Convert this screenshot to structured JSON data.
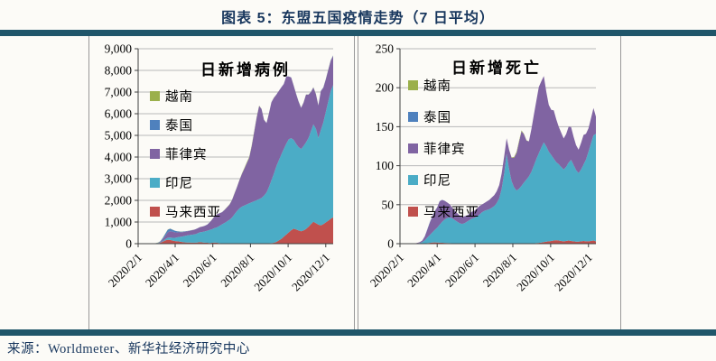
{
  "page_title": "图表 5：东盟五国疫情走势（7 日平均）",
  "footer": {
    "source": "来源：Worldmeter、新华社经济研究中心"
  },
  "colors": {
    "accent_bar": "#20566a",
    "heading_text": "#17365d",
    "divider": "#999999",
    "axis": "#404040",
    "grid": "#b8b8b8",
    "series": {
      "vietnam": "#9bb04c",
      "thailand": "#4f81bd",
      "philippines": "#8064a2",
      "indonesia": "#4bacc6",
      "malaysia": "#c0504d"
    }
  },
  "chart_data": [
    {
      "type": "area",
      "stacked": true,
      "title": "日新增病例",
      "ylim": [
        0,
        9000
      ],
      "y_tick_step": 1000,
      "y_format": "comma",
      "grid": "horizontal",
      "legend_position": "inside-left",
      "x_domain_days": [
        0,
        316
      ],
      "x_step_days": 4,
      "x_start_date": "2020/2/1",
      "x_tick_days": [
        0,
        60,
        121,
        182,
        243,
        304
      ],
      "x_tick_labels": [
        "2020/2/1",
        "2020/4/1",
        "2020/6/1",
        "2020/8/1",
        "2020/10/1",
        "2020/12/1"
      ],
      "legend": [
        {
          "key": "vietnam",
          "label": "越南"
        },
        {
          "key": "thailand",
          "label": "泰国"
        },
        {
          "key": "philippines",
          "label": "菲律宾"
        },
        {
          "key": "indonesia",
          "label": "印尼"
        },
        {
          "key": "malaysia",
          "label": "马来西亚"
        }
      ],
      "series": [
        {
          "key": "malaysia",
          "name": "马来西亚",
          "values": [
            0,
            0,
            0,
            1,
            1,
            2,
            3,
            6,
            15,
            40,
            90,
            150,
            185,
            170,
            140,
            120,
            110,
            95,
            75,
            60,
            55,
            50,
            45,
            45,
            55,
            75,
            60,
            45,
            40,
            35,
            40,
            55,
            40,
            25,
            15,
            10,
            8,
            6,
            5,
            4,
            4,
            5,
            8,
            10,
            12,
            14,
            12,
            10,
            9,
            10,
            12,
            15,
            18,
            20,
            25,
            40,
            80,
            150,
            220,
            320,
            420,
            520,
            620,
            690,
            660,
            610,
            570,
            610,
            680,
            780,
            900,
            1010,
            950,
            880,
            840,
            900,
            980,
            1060,
            1150,
            1220
          ]
        },
        {
          "key": "indonesia",
          "name": "印尼",
          "values": [
            0,
            0,
            0,
            0,
            0,
            1,
            2,
            4,
            8,
            15,
            30,
            60,
            90,
            110,
            130,
            150,
            185,
            220,
            260,
            300,
            330,
            350,
            370,
            390,
            420,
            450,
            480,
            520,
            560,
            600,
            630,
            670,
            720,
            800,
            880,
            950,
            1020,
            1100,
            1200,
            1350,
            1500,
            1620,
            1700,
            1750,
            1800,
            1850,
            1900,
            1950,
            2000,
            2050,
            2100,
            2200,
            2350,
            2600,
            2900,
            3200,
            3500,
            3700,
            3900,
            4050,
            4200,
            4300,
            4250,
            4100,
            3950,
            3850,
            3800,
            3900,
            4000,
            4100,
            4300,
            4500,
            4350,
            4000,
            4400,
            4700,
            5100,
            5500,
            5900,
            6100
          ]
        },
        {
          "key": "philippines",
          "name": "菲律宾",
          "values": [
            0,
            0,
            0,
            1,
            1,
            2,
            3,
            5,
            10,
            30,
            80,
            150,
            250,
            300,
            280,
            250,
            220,
            210,
            200,
            195,
            190,
            200,
            210,
            220,
            230,
            240,
            250,
            260,
            280,
            350,
            450,
            550,
            600,
            580,
            560,
            600,
            650,
            700,
            800,
            950,
            1100,
            1300,
            1500,
            1700,
            1900,
            2100,
            2600,
            3200,
            3800,
            4300,
            4100,
            3500,
            3200,
            3400,
            3600,
            3500,
            3300,
            3200,
            3100,
            3000,
            3100,
            2900,
            2800,
            2500,
            2300,
            2100,
            1900,
            2000,
            2200,
            2000,
            1800,
            1700,
            1600,
            1500,
            1800,
            1600,
            1500,
            1450,
            1400,
            1350
          ]
        },
        {
          "key": "thailand",
          "name": "泰国",
          "values": [
            1,
            1,
            1,
            1,
            2,
            2,
            3,
            5,
            10,
            25,
            60,
            100,
            120,
            110,
            90,
            70,
            50,
            35,
            25,
            15,
            10,
            8,
            6,
            5,
            4,
            3,
            3,
            3,
            2,
            2,
            2,
            2,
            3,
            3,
            2,
            2,
            3,
            3,
            3,
            4,
            4,
            4,
            5,
            4,
            4,
            4,
            4,
            4,
            3,
            3,
            3,
            3,
            3,
            3,
            3,
            3,
            3,
            3,
            3,
            3,
            3,
            4,
            4,
            5,
            5,
            6,
            6,
            7,
            8,
            8,
            9,
            10,
            10,
            10,
            12,
            12,
            14,
            16,
            18,
            20
          ]
        },
        {
          "key": "vietnam",
          "name": "越南",
          "values": [
            1,
            2,
            3,
            2,
            1,
            1,
            0,
            2,
            5,
            8,
            10,
            12,
            10,
            8,
            6,
            5,
            4,
            3,
            2,
            1,
            1,
            1,
            1,
            0,
            0,
            0,
            0,
            0,
            0,
            1,
            1,
            1,
            1,
            2,
            2,
            3,
            5,
            8,
            10,
            8,
            5,
            3,
            15,
            30,
            40,
            35,
            30,
            25,
            20,
            15,
            10,
            8,
            6,
            5,
            4,
            3,
            3,
            2,
            2,
            2,
            3,
            3,
            4,
            5,
            4,
            3,
            3,
            4,
            5,
            5,
            6,
            8,
            6,
            5,
            4,
            5,
            8,
            10,
            12,
            10
          ]
        }
      ]
    },
    {
      "type": "area",
      "stacked": true,
      "title": "日新增死亡",
      "ylim": [
        0,
        250
      ],
      "y_tick_step": 50,
      "y_format": "plain",
      "grid": "horizontal",
      "legend_position": "inside-left",
      "x_domain_days": [
        0,
        316
      ],
      "x_step_days": 4,
      "x_start_date": "2020/2/1",
      "x_tick_days": [
        0,
        60,
        121,
        182,
        243,
        304
      ],
      "x_tick_labels": [
        "2020/2/1",
        "2020/4/1",
        "2020/6/1",
        "2020/8/1",
        "2020/10/1",
        "2020/12/1"
      ],
      "legend": [
        {
          "key": "vietnam",
          "label": "越南"
        },
        {
          "key": "thailand",
          "label": "泰国"
        },
        {
          "key": "philippines",
          "label": "菲律宾"
        },
        {
          "key": "indonesia",
          "label": "印尼"
        },
        {
          "key": "malaysia",
          "label": "马来西亚"
        }
      ],
      "series": [
        {
          "key": "malaysia",
          "name": "马来西亚",
          "values": [
            0,
            0,
            0,
            0,
            0,
            0,
            0,
            0,
            0,
            0,
            0.3,
            0.7,
            1,
            1.4,
            1.6,
            1.5,
            1.3,
            1.1,
            1,
            0.9,
            0.7,
            0.6,
            0.5,
            0.4,
            0.3,
            0.3,
            0.2,
            0.2,
            0.2,
            0.1,
            0.1,
            0.1,
            0.1,
            0.1,
            0.1,
            0.1,
            0.1,
            0.1,
            0.1,
            0.1,
            0.1,
            0.1,
            0.1,
            0.2,
            0.2,
            0.2,
            0.2,
            0.2,
            0.2,
            0.2,
            0.3,
            0.3,
            0.3,
            0.3,
            0.5,
            0.8,
            1,
            1.5,
            2,
            2.5,
            3,
            3.5,
            4,
            4.5,
            4,
            3.5,
            3,
            3.5,
            4,
            3.5,
            3,
            2.5,
            2.5,
            3,
            3.5,
            3,
            3,
            3.5,
            4,
            3
          ]
        },
        {
          "key": "indonesia",
          "name": "印尼",
          "values": [
            0,
            0,
            0,
            0,
            0,
            0,
            0,
            0.5,
            1,
            2,
            4,
            7,
            10,
            13,
            16,
            19,
            23,
            27,
            30,
            32,
            33,
            32,
            30,
            28,
            26,
            25,
            26,
            28,
            30,
            32,
            33,
            35,
            37,
            40,
            42,
            43,
            44,
            46,
            48,
            52,
            58,
            70,
            90,
            115,
            95,
            80,
            72,
            68,
            70,
            74,
            78,
            82,
            86,
            92,
            100,
            108,
            115,
            122,
            128,
            122,
            115,
            110,
            105,
            100,
            98,
            95,
            92,
            95,
            100,
            104,
            98,
            92,
            88,
            92,
            98,
            105,
            115,
            125,
            135,
            138
          ]
        },
        {
          "key": "philippines",
          "name": "菲律宾",
          "values": [
            0,
            0,
            0,
            0,
            0,
            0,
            0.3,
            0.5,
            1,
            2,
            5,
            10,
            16,
            20,
            24,
            26,
            30,
            28,
            24,
            20,
            17,
            14,
            12,
            11,
            10,
            9,
            9,
            8,
            8,
            9,
            9,
            10,
            11,
            10,
            10,
            11,
            12,
            13,
            14,
            15,
            17,
            20,
            22,
            20,
            25,
            30,
            38,
            48,
            60,
            70,
            62,
            50,
            45,
            55,
            65,
            75,
            85,
            85,
            85,
            70,
            60,
            58,
            62,
            55,
            48,
            44,
            40,
            42,
            46,
            42,
            36,
            32,
            30,
            34,
            38,
            33,
            30,
            32,
            35,
            22
          ]
        },
        {
          "key": "thailand",
          "name": "泰国",
          "values": [
            0,
            0,
            0,
            0,
            0,
            0,
            0,
            0,
            0,
            0,
            0.3,
            0.5,
            0.5,
            0.4,
            0.3,
            0.3,
            0.2,
            0.2,
            0.1,
            0,
            0,
            0,
            0,
            0,
            0,
            0,
            0,
            0,
            0,
            0,
            0,
            0,
            0,
            0,
            0,
            0,
            0,
            0,
            0,
            0,
            0,
            0,
            0,
            0,
            0,
            0,
            0,
            0,
            0,
            0,
            0,
            0,
            0,
            0,
            0,
            0,
            0,
            0,
            0,
            0,
            0,
            0,
            0,
            0,
            0,
            0,
            0,
            0,
            0,
            0,
            0,
            0,
            0,
            0,
            0,
            0,
            0,
            0,
            0,
            0
          ]
        },
        {
          "key": "vietnam",
          "name": "越南",
          "values": [
            0,
            0,
            0,
            0,
            0,
            0,
            0,
            0,
            0,
            0,
            0,
            0,
            0,
            0,
            0,
            0,
            0,
            0,
            0,
            0,
            0,
            0,
            0,
            0,
            0,
            0,
            0,
            0,
            0,
            0,
            0,
            0,
            0,
            0,
            0,
            0,
            0,
            0,
            0,
            0,
            0,
            0,
            0,
            0,
            0,
            0.5,
            1,
            1.5,
            1.5,
            1,
            0.5,
            0.3,
            0,
            0,
            0,
            0,
            0,
            0,
            0,
            0,
            0,
            0,
            0,
            0,
            0,
            0,
            0,
            0,
            0,
            0,
            0,
            0,
            0,
            0,
            0,
            0,
            0,
            0,
            0,
            0
          ]
        }
      ]
    }
  ]
}
